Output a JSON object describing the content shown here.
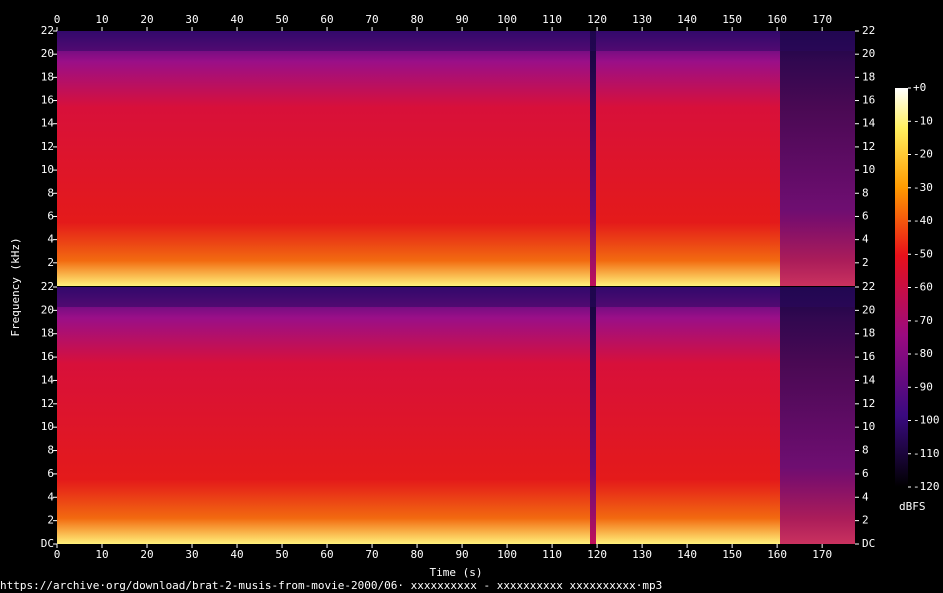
{
  "chart_data": [
    {
      "type": "spectrogram",
      "ylabel": "Frequency (kHz)",
      "xlim": [
        0,
        177.3
      ],
      "xticks": [
        0,
        10,
        20,
        30,
        40,
        50,
        60,
        70,
        80,
        90,
        100,
        110,
        120,
        130,
        140,
        150,
        160,
        170
      ],
      "ylim": [
        0,
        22
      ],
      "yticks": [
        2,
        4,
        6,
        8,
        10,
        12,
        14,
        16,
        18,
        20,
        22
      ]
    },
    {
      "type": "spectrogram",
      "xlabel": "Time (s)",
      "xlim": [
        0,
        177.3
      ],
      "xticks": [
        0,
        10,
        20,
        30,
        40,
        50,
        60,
        70,
        80,
        90,
        100,
        110,
        120,
        130,
        140,
        150,
        160,
        170
      ],
      "ylim": [
        0,
        22
      ],
      "yticks": [
        {
          "value": 0,
          "label": "DC"
        },
        2,
        4,
        6,
        8,
        10,
        12,
        14,
        16,
        18,
        20,
        22
      ]
    }
  ],
  "colorbar": {
    "label": "dBFS",
    "lim": [
      -120,
      0
    ],
    "ticks": [
      {
        "value": 0,
        "label": "+0"
      },
      -10,
      -20,
      -30,
      -40,
      -50,
      -60,
      -70,
      -80,
      -90,
      -100,
      -110,
      -120
    ]
  },
  "footer": "https://archive·org/download/brat-2-musis-from-movie-2000/06· xxxxxxxxxx - xxxxxxxxxx xxxxxxxxxx·mp3"
}
